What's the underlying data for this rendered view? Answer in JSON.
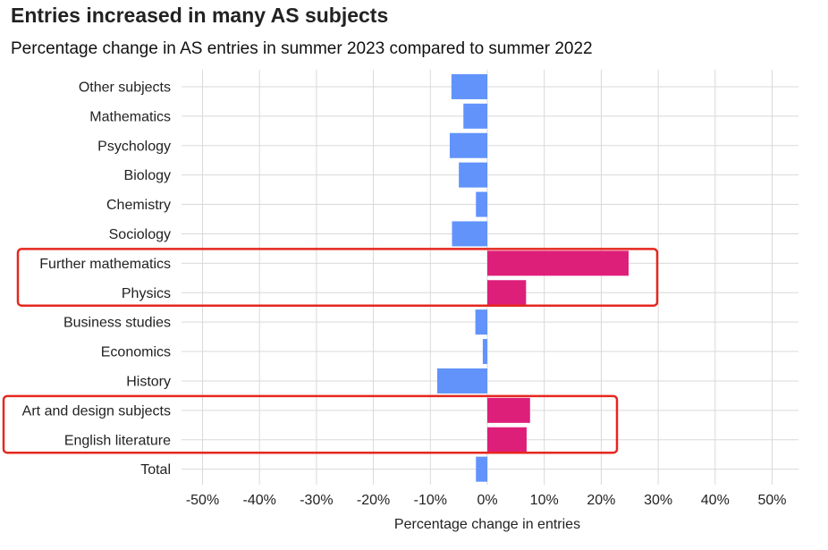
{
  "colors": {
    "positive": "#de1f7a",
    "negative": "#6193fb",
    "highlight_box": "#e5271f",
    "grid": "#d9d9d9"
  },
  "chart_data": {
    "type": "bar",
    "orientation": "horizontal",
    "title": "Entries increased in many AS subjects",
    "subtitle": "Percentage change in AS entries in summer 2023 compared to summer 2022",
    "xlabel": "Percentage change in entries",
    "ylabel": "",
    "xlim": [
      -50,
      50
    ],
    "xticks": [
      -50,
      -40,
      -30,
      -20,
      -10,
      0,
      10,
      20,
      30,
      40,
      50
    ],
    "xtick_labels": [
      "-50%",
      "-40%",
      "-30%",
      "-20%",
      "-10%",
      "0%",
      "10%",
      "20%",
      "30%",
      "40%",
      "50%"
    ],
    "grid": true,
    "categories": [
      "Other subjects",
      "Mathematics",
      "Psychology",
      "Biology",
      "Chemistry",
      "Sociology",
      "Further mathematics",
      "Physics",
      "Business studies",
      "Economics",
      "History",
      "Art and design subjects",
      "English literature",
      "Total"
    ],
    "values": [
      -6.3,
      -4.2,
      -6.6,
      -5.0,
      -2.0,
      -6.2,
      24.8,
      6.8,
      -2.1,
      -0.8,
      -8.8,
      7.5,
      6.9,
      -2.0
    ],
    "highlighted_groups": [
      [
        "Further mathematics",
        "Physics"
      ],
      [
        "Art and design subjects",
        "English literature"
      ]
    ]
  }
}
